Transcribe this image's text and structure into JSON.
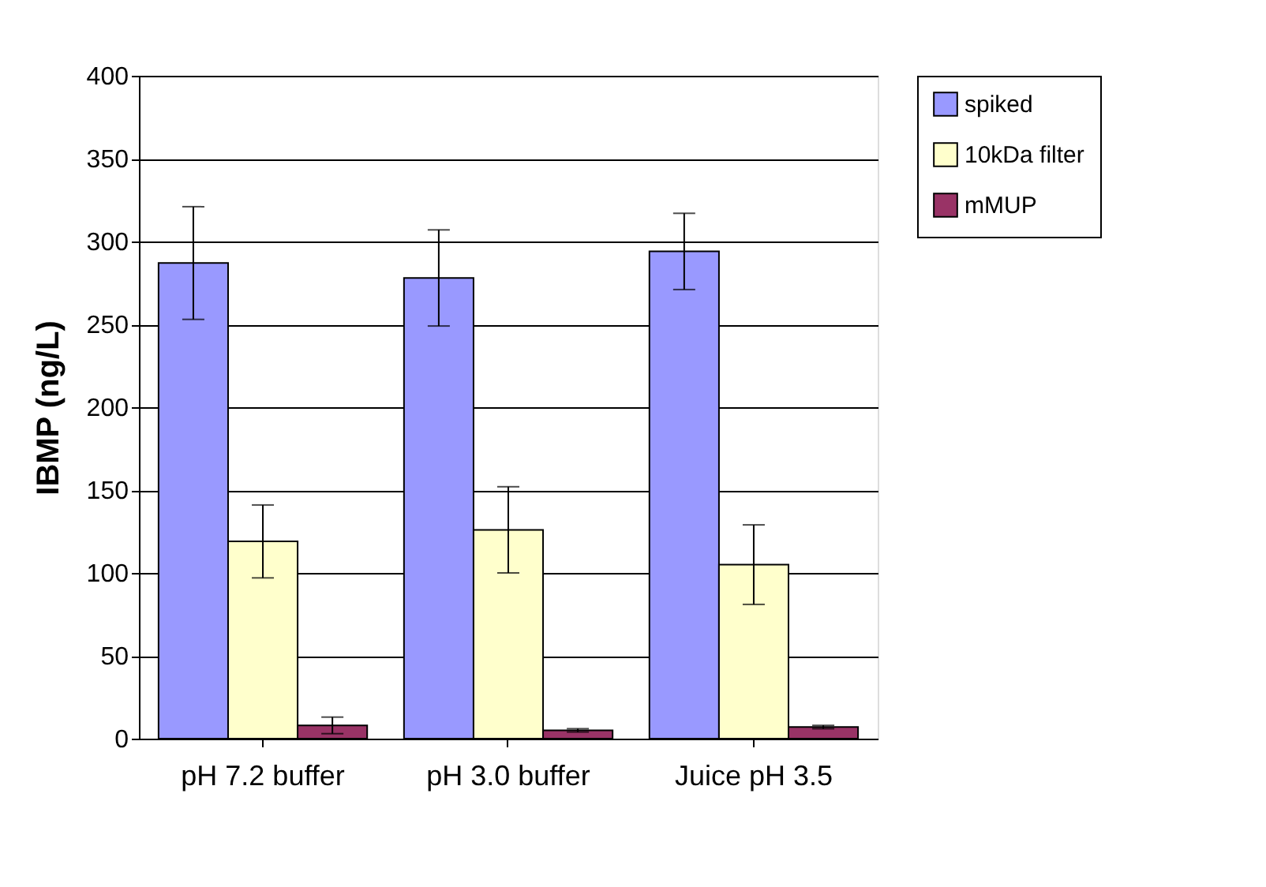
{
  "chart_data": {
    "type": "bar",
    "ylabel": "IBMP (ng/L)",
    "categories": [
      "pH 7.2 buffer",
      "pH 3.0 buffer",
      "Juice pH 3.5"
    ],
    "series": [
      {
        "name": "spiked",
        "color": "#9999ff",
        "values": [
          287,
          278,
          294
        ],
        "errors": [
          34,
          29,
          23
        ]
      },
      {
        "name": "10kDa filter",
        "color": "#ffffcc",
        "values": [
          119,
          126,
          105
        ],
        "errors": [
          22,
          26,
          24
        ]
      },
      {
        "name": "mMUP",
        "color": "#993366",
        "values": [
          8,
          5,
          7
        ],
        "errors": [
          5,
          1,
          1
        ]
      }
    ],
    "ylim": [
      0,
      400
    ],
    "yticks": [
      0,
      50,
      100,
      150,
      200,
      250,
      300,
      350,
      400
    ],
    "grid": "y",
    "legend": "right"
  }
}
